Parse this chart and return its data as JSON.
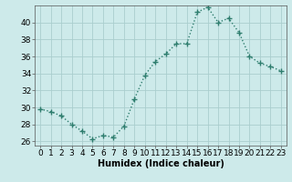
{
  "x": [
    0,
    1,
    2,
    3,
    4,
    5,
    6,
    7,
    8,
    9,
    10,
    11,
    12,
    13,
    14,
    15,
    16,
    17,
    18,
    19,
    20,
    21,
    22,
    23
  ],
  "y": [
    29.8,
    29.5,
    29.0,
    28.0,
    27.2,
    26.3,
    26.7,
    26.5,
    27.8,
    31.0,
    33.8,
    35.4,
    36.3,
    37.5,
    37.5,
    41.2,
    41.8,
    40.0,
    40.5,
    38.8,
    36.0,
    35.2,
    34.8,
    34.3
  ],
  "line_color": "#2e7d6e",
  "marker": "+",
  "markersize": 4,
  "linewidth": 1.0,
  "xlabel": "Humidex (Indice chaleur)",
  "xlim": [
    -0.5,
    23.5
  ],
  "ylim": [
    25.5,
    42.0
  ],
  "yticks": [
    26,
    28,
    30,
    32,
    34,
    36,
    38,
    40
  ],
  "xtick_labels": [
    "0",
    "1",
    "2",
    "3",
    "4",
    "5",
    "6",
    "7",
    "8",
    "9",
    "10",
    "11",
    "12",
    "13",
    "14",
    "15",
    "16",
    "17",
    "18",
    "19",
    "20",
    "21",
    "22",
    "23"
  ],
  "bg_color": "#cdeaea",
  "grid_color": "#aacece",
  "xlabel_fontsize": 7,
  "tick_fontsize": 6.5
}
